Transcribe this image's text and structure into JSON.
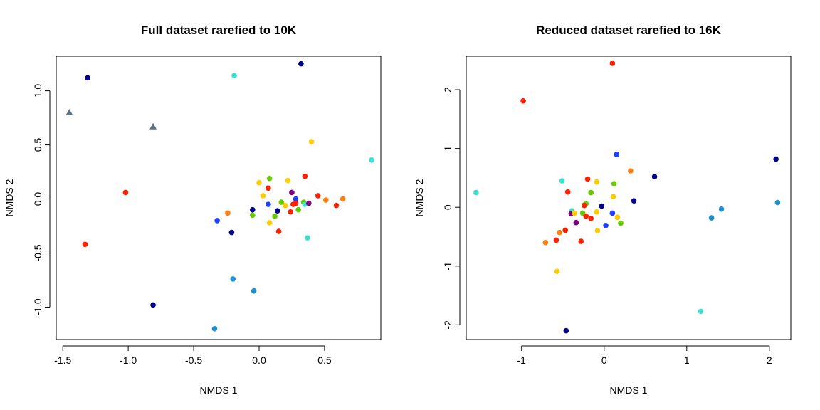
{
  "chart_data": [
    {
      "type": "scatter",
      "title": "Full dataset rarefied to 10K",
      "xlabel": "NMDS 1",
      "ylabel": "NMDS 2",
      "xlim": [
        -1.55,
        0.93
      ],
      "ylim": [
        -1.3,
        1.32
      ],
      "xticks": [
        -1.5,
        -1.0,
        -0.5,
        0.0,
        0.5
      ],
      "xtick_labels": [
        "-1.5",
        "-1.0",
        "-0.5",
        "0.0",
        "0.5"
      ],
      "yticks": [
        -1.0,
        -0.5,
        0.0,
        0.5,
        1.0
      ],
      "ytick_labels": [
        "-1.0",
        "-0.5",
        "0.0",
        "0.5",
        "1.0"
      ],
      "points": [
        {
          "x": -1.45,
          "y": 0.8,
          "color": "#5a6e85",
          "shape": "triangle"
        },
        {
          "x": -0.81,
          "y": 0.67,
          "color": "#5a6e85",
          "shape": "triangle"
        },
        {
          "x": -1.31,
          "y": 1.12,
          "color": "#00008b"
        },
        {
          "x": 0.32,
          "y": 1.25,
          "color": "#00008b"
        },
        {
          "x": -0.19,
          "y": 1.14,
          "color": "#40e0d0"
        },
        {
          "x": 0.86,
          "y": 0.36,
          "color": "#40e0d0"
        },
        {
          "x": 0.4,
          "y": 0.53,
          "color": "#ffcc00"
        },
        {
          "x": -1.02,
          "y": 0.06,
          "color": "#ff2000"
        },
        {
          "x": -1.33,
          "y": -0.42,
          "color": "#ff2000"
        },
        {
          "x": -0.81,
          "y": -0.98,
          "color": "#00008b"
        },
        {
          "x": -0.2,
          "y": -0.74,
          "color": "#1e90d0"
        },
        {
          "x": -0.04,
          "y": -0.85,
          "color": "#1e90d0"
        },
        {
          "x": -0.34,
          "y": -1.2,
          "color": "#1e90d0"
        },
        {
          "x": 0.37,
          "y": -0.36,
          "color": "#40e0d0"
        },
        {
          "x": -0.32,
          "y": -0.2,
          "color": "#1e40ff"
        },
        {
          "x": -0.21,
          "y": -0.31,
          "color": "#00008b"
        },
        {
          "x": -0.24,
          "y": -0.13,
          "color": "#ff7f0e"
        },
        {
          "x": -0.05,
          "y": -0.1,
          "color": "#00008b"
        },
        {
          "x": -0.05,
          "y": -0.15,
          "color": "#66cc00"
        },
        {
          "x": 0.0,
          "y": 0.15,
          "color": "#ffcc00"
        },
        {
          "x": 0.03,
          "y": 0.03,
          "color": "#ffcc00"
        },
        {
          "x": 0.07,
          "y": 0.1,
          "color": "#ff2000"
        },
        {
          "x": 0.08,
          "y": 0.19,
          "color": "#66cc00"
        },
        {
          "x": 0.07,
          "y": -0.05,
          "color": "#1e40ff"
        },
        {
          "x": 0.08,
          "y": -0.22,
          "color": "#ffcc00"
        },
        {
          "x": 0.12,
          "y": -0.16,
          "color": "#66cc00"
        },
        {
          "x": 0.14,
          "y": -0.11,
          "color": "#00008b"
        },
        {
          "x": 0.15,
          "y": -0.3,
          "color": "#ff2000"
        },
        {
          "x": 0.17,
          "y": -0.03,
          "color": "#66cc00"
        },
        {
          "x": 0.2,
          "y": -0.06,
          "color": "#ffcc00"
        },
        {
          "x": 0.22,
          "y": 0.17,
          "color": "#ffcc00"
        },
        {
          "x": 0.24,
          "y": -0.12,
          "color": "#ff2000"
        },
        {
          "x": 0.25,
          "y": 0.06,
          "color": "#800080"
        },
        {
          "x": 0.26,
          "y": -0.05,
          "color": "#ff2000"
        },
        {
          "x": 0.28,
          "y": 0.0,
          "color": "#1e40ff"
        },
        {
          "x": 0.28,
          "y": -0.04,
          "color": "#ff2000"
        },
        {
          "x": 0.3,
          "y": -0.1,
          "color": "#66cc00"
        },
        {
          "x": 0.34,
          "y": -0.03,
          "color": "#66cc00"
        },
        {
          "x": 0.35,
          "y": -0.05,
          "color": "#40e0d0"
        },
        {
          "x": 0.35,
          "y": 0.21,
          "color": "#ff2000"
        },
        {
          "x": 0.38,
          "y": -0.04,
          "color": "#800080"
        },
        {
          "x": 0.45,
          "y": 0.03,
          "color": "#ff2000"
        },
        {
          "x": 0.51,
          "y": -0.01,
          "color": "#ff7f0e"
        },
        {
          "x": 0.59,
          "y": -0.06,
          "color": "#ff2000"
        },
        {
          "x": 0.64,
          "y": 0.0,
          "color": "#ff7f0e"
        }
      ]
    },
    {
      "type": "scatter",
      "title": "Reduced dataset rarefied to 16K",
      "xlabel": "NMDS 1",
      "ylabel": "NMDS 2",
      "xlim": [
        -1.67,
        2.26
      ],
      "ylim": [
        -2.25,
        2.57
      ],
      "xticks": [
        -1,
        0,
        1,
        2
      ],
      "xtick_labels": [
        "-1",
        "0",
        "1",
        "2"
      ],
      "yticks": [
        -2,
        -1,
        0,
        1,
        2
      ],
      "ytick_labels": [
        "-2",
        "-1",
        "0",
        "1",
        "2"
      ],
      "points": [
        {
          "x": 0.1,
          "y": 2.45,
          "color": "#ff2000"
        },
        {
          "x": -0.98,
          "y": 1.81,
          "color": "#ff2000"
        },
        {
          "x": 2.08,
          "y": 0.82,
          "color": "#00008b"
        },
        {
          "x": 2.1,
          "y": 0.08,
          "color": "#1e90d0"
        },
        {
          "x": 1.42,
          "y": -0.03,
          "color": "#1e90d0"
        },
        {
          "x": 1.3,
          "y": -0.18,
          "color": "#1e90d0"
        },
        {
          "x": 1.17,
          "y": -1.77,
          "color": "#40e0d0"
        },
        {
          "x": -1.55,
          "y": 0.25,
          "color": "#40e0d0"
        },
        {
          "x": -0.46,
          "y": -2.1,
          "color": "#00008b"
        },
        {
          "x": -0.57,
          "y": -1.09,
          "color": "#ffcc00"
        },
        {
          "x": 0.15,
          "y": 0.9,
          "color": "#1e40ff"
        },
        {
          "x": 0.32,
          "y": 0.62,
          "color": "#ff7f0e"
        },
        {
          "x": 0.61,
          "y": 0.52,
          "color": "#00008b"
        },
        {
          "x": 0.36,
          "y": 0.11,
          "color": "#00008b"
        },
        {
          "x": -0.51,
          "y": 0.45,
          "color": "#40e0d0"
        },
        {
          "x": -0.2,
          "y": 0.48,
          "color": "#ff2000"
        },
        {
          "x": -0.09,
          "y": 0.43,
          "color": "#ffcc00"
        },
        {
          "x": 0.12,
          "y": 0.4,
          "color": "#66cc00"
        },
        {
          "x": -0.16,
          "y": 0.25,
          "color": "#66cc00"
        },
        {
          "x": -0.44,
          "y": 0.26,
          "color": "#ff2000"
        },
        {
          "x": 0.11,
          "y": 0.18,
          "color": "#ffcc00"
        },
        {
          "x": -0.24,
          "y": 0.04,
          "color": "#66cc00"
        },
        {
          "x": -0.22,
          "y": 0.06,
          "color": "#66cc00"
        },
        {
          "x": -0.24,
          "y": 0.03,
          "color": "#ff2000"
        },
        {
          "x": -0.03,
          "y": 0.02,
          "color": "#00008b"
        },
        {
          "x": -0.39,
          "y": -0.06,
          "color": "#40e0d0"
        },
        {
          "x": -0.4,
          "y": -0.11,
          "color": "#800080"
        },
        {
          "x": -0.36,
          "y": -0.1,
          "color": "#ffcc00"
        },
        {
          "x": -0.26,
          "y": -0.1,
          "color": "#66cc00"
        },
        {
          "x": -0.22,
          "y": -0.15,
          "color": "#ff2000"
        },
        {
          "x": -0.16,
          "y": -0.19,
          "color": "#ff2000"
        },
        {
          "x": -0.09,
          "y": -0.08,
          "color": "#ffcc00"
        },
        {
          "x": 0.1,
          "y": -0.1,
          "color": "#1e40ff"
        },
        {
          "x": 0.16,
          "y": -0.17,
          "color": "#ffcc00"
        },
        {
          "x": 0.2,
          "y": -0.27,
          "color": "#66cc00"
        },
        {
          "x": 0.02,
          "y": -0.31,
          "color": "#1e40ff"
        },
        {
          "x": -0.08,
          "y": -0.4,
          "color": "#ffcc00"
        },
        {
          "x": -0.34,
          "y": -0.26,
          "color": "#800080"
        },
        {
          "x": -0.47,
          "y": -0.39,
          "color": "#ff2000"
        },
        {
          "x": -0.54,
          "y": -0.43,
          "color": "#ff7f0e"
        },
        {
          "x": -0.28,
          "y": -0.58,
          "color": "#ff2000"
        },
        {
          "x": -0.58,
          "y": -0.56,
          "color": "#ff2000"
        },
        {
          "x": -0.71,
          "y": -0.6,
          "color": "#ff7f0e"
        }
      ]
    }
  ]
}
